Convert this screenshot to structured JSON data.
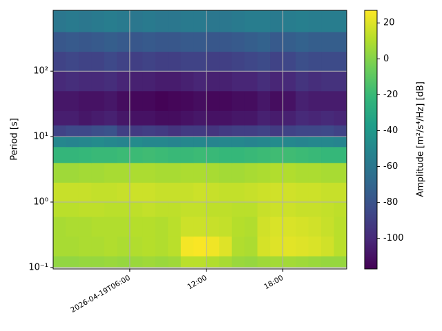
{
  "chart_data": {
    "type": "heatmap",
    "ylabel": "Period [s]",
    "log_y": true,
    "grid": true,
    "colormap": "viridis",
    "x_edges": [
      "2026-04-19T00:00",
      "2026-04-19T01:00",
      "2026-04-19T02:00",
      "2026-04-19T03:00",
      "2026-04-19T04:00",
      "2026-04-19T05:00",
      "2026-04-19T06:00",
      "2026-04-19T07:00",
      "2026-04-19T08:00",
      "2026-04-19T09:00",
      "2026-04-19T10:00",
      "2026-04-19T11:00",
      "2026-04-19T12:00",
      "2026-04-19T13:00",
      "2026-04-19T14:00",
      "2026-04-19T15:00",
      "2026-04-19T16:00",
      "2026-04-19T17:00",
      "2026-04-19T18:00",
      "2026-04-19T19:00",
      "2026-04-19T20:00",
      "2026-04-19T21:00",
      "2026-04-19T22:00",
      "2026-04-19T23:00"
    ],
    "y_edges": [
      0.1,
      0.15,
      0.3,
      0.6,
      1,
      2,
      4,
      7,
      10,
      15,
      25,
      50,
      100,
      200,
      400,
      850
    ],
    "values": [
      [
        3,
        3,
        4,
        4,
        5,
        4,
        5,
        6,
        5,
        6,
        12,
        12,
        10,
        8,
        5,
        4,
        6,
        7,
        7,
        6,
        5,
        4,
        4
      ],
      [
        8,
        8,
        9,
        9,
        10,
        9,
        10,
        11,
        10,
        12,
        25,
        26,
        24,
        20,
        10,
        9,
        18,
        20,
        21,
        20,
        19,
        17,
        12
      ],
      [
        8,
        9,
        9,
        10,
        10,
        10,
        11,
        11,
        10,
        12,
        16,
        16,
        15,
        14,
        11,
        10,
        17,
        19,
        19,
        18,
        17,
        15,
        12
      ],
      [
        12,
        12,
        13,
        13,
        12,
        12,
        13,
        14,
        13,
        13,
        14,
        14,
        13,
        13,
        12,
        12,
        15,
        16,
        16,
        15,
        15,
        14,
        13
      ],
      [
        15,
        15,
        15,
        14,
        14,
        15,
        16,
        16,
        15,
        15,
        15,
        16,
        15,
        14,
        14,
        15,
        16,
        17,
        17,
        16,
        16,
        15,
        15
      ],
      [
        6,
        6,
        7,
        7,
        8,
        8,
        9,
        9,
        8,
        8,
        9,
        9,
        8,
        7,
        7,
        8,
        9,
        10,
        10,
        9,
        9,
        8,
        8
      ],
      [
        -22,
        -22,
        -21,
        -20,
        -20,
        -19,
        -19,
        -18,
        -19,
        -20,
        -20,
        -19,
        -20,
        -21,
        -21,
        -20,
        -19,
        -18,
        -18,
        -19,
        -20,
        -21,
        -21
      ],
      [
        -50,
        -52,
        -50,
        -48,
        -50,
        -52,
        -48,
        -50,
        -50,
        -52,
        -50,
        -50,
        -52,
        -50,
        -50,
        -52,
        -50,
        -48,
        -50,
        -52,
        -50,
        -50,
        -52
      ],
      [
        -88,
        -85,
        -85,
        -82,
        -80,
        -90,
        -92,
        -90,
        -92,
        -95,
        -92,
        -92,
        -95,
        -92,
        -90,
        -90,
        -88,
        -92,
        -88,
        -86,
        -86,
        -85,
        -88
      ],
      [
        -105,
        -105,
        -108,
        -106,
        -104,
        -108,
        -110,
        -110,
        -112,
        -112,
        -110,
        -108,
        -110,
        -110,
        -108,
        -108,
        -104,
        -106,
        -104,
        -100,
        -102,
        -100,
        -102
      ],
      [
        -108,
        -108,
        -110,
        -110,
        -108,
        -112,
        -114,
        -114,
        -116,
        -115,
        -114,
        -112,
        -114,
        -114,
        -112,
        -112,
        -108,
        -112,
        -110,
        -104,
        -106,
        -106,
        -106
      ],
      [
        -100,
        -98,
        -100,
        -100,
        -98,
        -102,
        -104,
        -104,
        -106,
        -106,
        -104,
        -102,
        -104,
        -104,
        -102,
        -102,
        -98,
        -102,
        -100,
        -95,
        -98,
        -96,
        -96
      ],
      [
        -88,
        -86,
        -88,
        -88,
        -85,
        -88,
        -90,
        -88,
        -90,
        -90,
        -88,
        -88,
        -90,
        -90,
        -88,
        -86,
        -84,
        -88,
        -86,
        -82,
        -84,
        -84,
        -84
      ],
      [
        -78,
        -76,
        -78,
        -76,
        -74,
        -76,
        -78,
        -76,
        -78,
        -78,
        -76,
        -76,
        -78,
        -78,
        -76,
        -74,
        -72,
        -76,
        -74,
        -72,
        -74,
        -74,
        -74
      ],
      [
        -60,
        -58,
        -60,
        -58,
        -56,
        -58,
        -60,
        -58,
        -60,
        -60,
        -58,
        -58,
        -60,
        -60,
        -58,
        -56,
        -56,
        -58,
        -56,
        -55,
        -56,
        -56,
        -56
      ]
    ],
    "xlim": [
      "2026-04-19T00:00",
      "2026-04-19T23:00"
    ],
    "xticks": [
      "2026-04-19T06:00",
      {
        "value": "2026-04-19T12:00",
        "label": "12:00"
      },
      {
        "value": "2026-04-19T18:00",
        "label": "18:00"
      }
    ],
    "ylim": [
      0.095,
      850
    ],
    "yticks": [
      {
        "value": 0.1,
        "label": "10⁻¹"
      },
      {
        "value": 1,
        "label": "10⁰"
      },
      {
        "value": 10,
        "label": "10¹"
      },
      {
        "value": 100,
        "label": "10²"
      }
    ],
    "colorbar": {
      "label": "Amplitude [m²/s⁴/Hz] [dB]",
      "lim": [
        -117,
        27
      ],
      "ticks": [
        -100,
        -80,
        -60,
        -40,
        -20,
        0,
        20
      ]
    }
  }
}
